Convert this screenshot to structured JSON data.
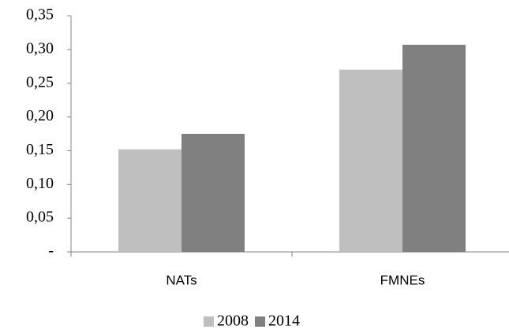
{
  "chart_data": {
    "type": "bar",
    "categories": [
      "NATs",
      "FMNEs"
    ],
    "series": [
      {
        "name": "2008",
        "color": "#bfbfbf",
        "values": [
          0.152,
          0.27
        ]
      },
      {
        "name": "2014",
        "color": "#808080",
        "values": [
          0.175,
          0.307
        ]
      }
    ],
    "ylim": [
      0,
      0.35
    ],
    "yticks": [
      {
        "value": 0,
        "label": "-"
      },
      {
        "value": 0.05,
        "label": "0,05"
      },
      {
        "value": 0.1,
        "label": "0,10"
      },
      {
        "value": 0.15,
        "label": "0,15"
      },
      {
        "value": 0.2,
        "label": "0,20"
      },
      {
        "value": 0.25,
        "label": "0,25"
      },
      {
        "value": 0.3,
        "label": "0,30"
      },
      {
        "value": 0.35,
        "label": "0,35"
      }
    ],
    "grid": false,
    "legend": "bottom"
  }
}
